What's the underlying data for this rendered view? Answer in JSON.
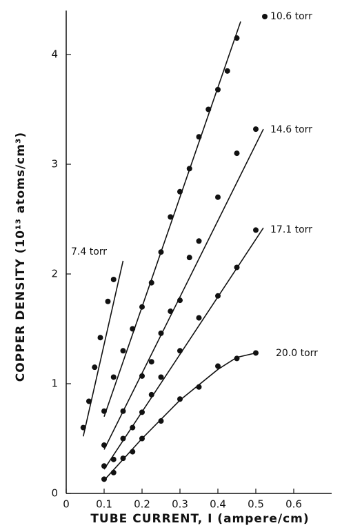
{
  "chart_data": {
    "type": "scatter",
    "x_label": "TUBE CURRENT, I (ampere/cm)",
    "y_label": "COPPER DENSITY  (10¹³ atoms/cm³)",
    "xlim": [
      0,
      0.7
    ],
    "ylim": [
      0,
      4.4
    ],
    "xticks": [
      0,
      0.1,
      0.2,
      0.3,
      0.4,
      0.5,
      0.6
    ],
    "yticks": [
      0,
      1,
      2,
      3,
      4
    ],
    "grid": false,
    "series": [
      {
        "name": "7.4 torr",
        "color": "#111111",
        "x": [
          0.045,
          0.06,
          0.075,
          0.09,
          0.11,
          0.125
        ],
        "values": [
          0.6,
          0.84,
          1.15,
          1.42,
          1.75,
          1.95
        ],
        "fit": {
          "x": [
            0.045,
            0.15
          ],
          "y": [
            0.52,
            2.12
          ]
        }
      },
      {
        "name": "10.6 torr",
        "color": "#111111",
        "x": [
          0.1,
          0.125,
          0.15,
          0.175,
          0.2,
          0.225,
          0.25,
          0.275,
          0.3,
          0.325,
          0.35,
          0.375,
          0.4,
          0.425,
          0.45
        ],
        "values": [
          0.75,
          1.06,
          1.3,
          1.5,
          1.7,
          1.92,
          2.2,
          2.52,
          2.75,
          2.96,
          3.25,
          3.5,
          3.68,
          3.85,
          4.15
        ],
        "fit": {
          "x": [
            0.1,
            0.46
          ],
          "y": [
            0.7,
            4.3
          ]
        }
      },
      {
        "name": "14.6 torr",
        "color": "#111111",
        "x": [
          0.1,
          0.15,
          0.2,
          0.225,
          0.25,
          0.275,
          0.3,
          0.325,
          0.35,
          0.4,
          0.45,
          0.5
        ],
        "values": [
          0.44,
          0.75,
          1.07,
          1.2,
          1.46,
          1.66,
          1.76,
          2.15,
          2.3,
          2.7,
          3.1,
          3.32
        ],
        "fit": {
          "x": [
            0.1,
            0.52
          ],
          "y": [
            0.4,
            3.32
          ]
        }
      },
      {
        "name": "17.1 torr",
        "color": "#111111",
        "x": [
          0.1,
          0.125,
          0.15,
          0.175,
          0.2,
          0.225,
          0.25,
          0.3,
          0.35,
          0.4,
          0.45,
          0.5
        ],
        "values": [
          0.25,
          0.31,
          0.5,
          0.6,
          0.74,
          0.9,
          1.06,
          1.3,
          1.6,
          1.8,
          2.06,
          2.4
        ],
        "fit": {
          "x": [
            0.1,
            0.52
          ],
          "y": [
            0.22,
            2.42
          ]
        }
      },
      {
        "name": "20.0 torr",
        "color": "#111111",
        "x": [
          0.1,
          0.125,
          0.15,
          0.175,
          0.2,
          0.25,
          0.3,
          0.35,
          0.4,
          0.45,
          0.5
        ],
        "values": [
          0.13,
          0.19,
          0.32,
          0.38,
          0.5,
          0.66,
          0.86,
          0.97,
          1.16,
          1.23,
          1.28
        ],
        "fit": {
          "x": [
            0.1,
            0.2,
            0.3,
            0.4,
            0.45,
            0.5
          ],
          "y": [
            0.12,
            0.5,
            0.85,
            1.13,
            1.24,
            1.28
          ]
        }
      }
    ]
  }
}
